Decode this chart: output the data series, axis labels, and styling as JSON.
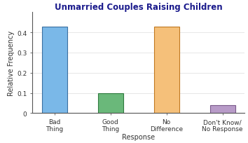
{
  "title": "Unmarried Couples Raising Children",
  "xlabel": "Response",
  "ylabel": "Relative Frequency",
  "categories": [
    "Bad\nThing",
    "Good\nThing",
    "No\nDifference",
    "Don't Know/\nNo Response"
  ],
  "values": [
    0.43,
    0.1,
    0.43,
    0.04
  ],
  "bar_colors": [
    "#7ab8e8",
    "#6ab87a",
    "#f5c07a",
    "#b89bc8"
  ],
  "bar_edgecolors": [
    "#3a6fa0",
    "#2e7a3e",
    "#c07820",
    "#7a5a8a"
  ],
  "ylim": [
    0,
    0.5
  ],
  "yticks": [
    0,
    0.1,
    0.2,
    0.3,
    0.4
  ],
  "title_fontsize": 8.5,
  "axis_label_fontsize": 7,
  "tick_fontsize": 6.5,
  "title_color": "#1a1a8c",
  "label_color": "#333333",
  "background_color": "#ffffff",
  "bar_width": 0.45
}
